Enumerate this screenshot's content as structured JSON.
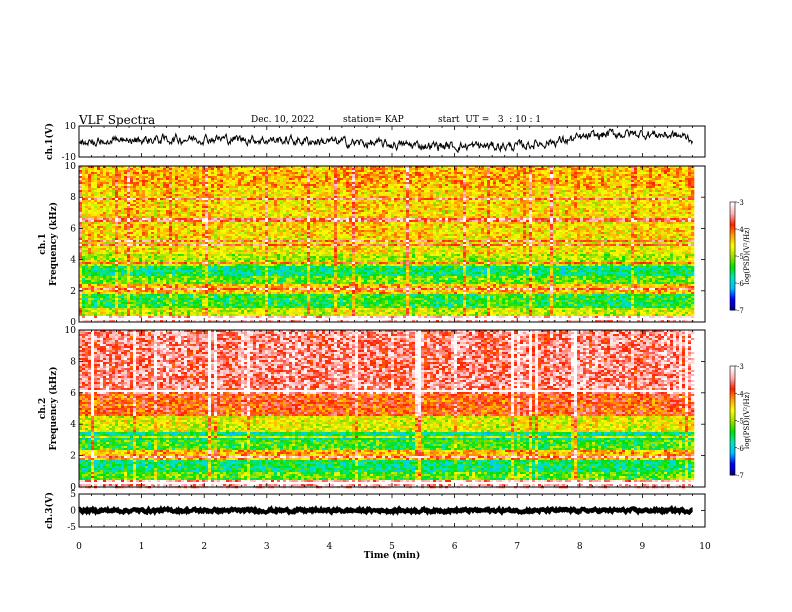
{
  "header": {
    "title": "VLF Spectra",
    "date": "Dec. 10, 2022",
    "station": "station= KAP",
    "start": "start  UT =   3  : 10 : 1"
  },
  "chart_data": [
    {
      "type": "line",
      "panel": "ch1-waveform",
      "ylabel": "ch.1(V)",
      "ylim": [
        -10,
        10
      ],
      "yticks": [
        "10",
        "-10"
      ],
      "xlim": [
        0,
        10
      ],
      "series": [
        {
          "x": [
            0,
            1,
            2,
            3,
            4,
            4.5,
            5,
            6,
            7,
            8,
            8.5,
            9,
            9.5,
            9.8
          ],
          "values": [
            0,
            1,
            2,
            1,
            0,
            -1,
            -2,
            -3,
            -3,
            2,
            5,
            5,
            4,
            2
          ],
          "noise": 4
        }
      ]
    },
    {
      "type": "heatmap",
      "panel": "ch1-spectrogram",
      "ylabel": "Frequency (kHz)",
      "channel_label": "ch.1",
      "ylim": [
        0,
        10
      ],
      "yticks": [
        "0",
        "2",
        "4",
        "6",
        "8",
        "10"
      ],
      "xlim": [
        0,
        9.8
      ],
      "bands": [
        {
          "from": 0,
          "to": 0.5,
          "level": -3.2
        },
        {
          "from": 0.5,
          "to": 1.0,
          "level": -4.8
        },
        {
          "from": 1.0,
          "to": 1.9,
          "level": -5.4
        },
        {
          "from": 1.9,
          "to": 2.5,
          "level": -4.4
        },
        {
          "from": 2.5,
          "to": 3.0,
          "level": -5.2
        },
        {
          "from": 3.0,
          "to": 3.7,
          "level": -5.6
        },
        {
          "from": 3.7,
          "to": 4.4,
          "level": -4.9
        },
        {
          "from": 4.4,
          "to": 5.5,
          "level": -4.6
        },
        {
          "from": 5.5,
          "to": 8.6,
          "level": -4.5
        },
        {
          "from": 8.6,
          "to": 10,
          "level": -4.3
        }
      ],
      "lines_khz": [
        0.3,
        2.2,
        3.8,
        5.0,
        5.3,
        6.6,
        8.0
      ],
      "colorbar": {
        "label": "log(PSD)(V²/Hz)",
        "range": [
          -7,
          -3
        ],
        "ticks": [
          "-3",
          "-4",
          "-5",
          "-6",
          "-7"
        ]
      }
    },
    {
      "type": "heatmap",
      "panel": "ch2-spectrogram",
      "ylabel": "Frequency (kHz)",
      "channel_label": "ch.2",
      "ylim": [
        0,
        10
      ],
      "yticks": [
        "0",
        "2",
        "4",
        "6",
        "8",
        "10"
      ],
      "xlim": [
        0,
        9.8
      ],
      "bands": [
        {
          "from": 0,
          "to": 0.5,
          "level": -3.3
        },
        {
          "from": 0.5,
          "to": 1.0,
          "level": -5.2
        },
        {
          "from": 1.0,
          "to": 1.8,
          "level": -5.6
        },
        {
          "from": 1.8,
          "to": 2.4,
          "level": -4.3
        },
        {
          "from": 2.4,
          "to": 3.0,
          "level": -5.3
        },
        {
          "from": 3.0,
          "to": 3.6,
          "level": -5.7
        },
        {
          "from": 3.6,
          "to": 4.6,
          "level": -4.7
        },
        {
          "from": 4.6,
          "to": 6.0,
          "level": -3.9
        },
        {
          "from": 6.0,
          "to": 10,
          "level": -3.5
        }
      ],
      "lines_khz": [
        0.3,
        2.0,
        3.3,
        6.2
      ],
      "colorbar": {
        "label": "log(PSD)(V²/Hz)",
        "range": [
          -7,
          -3
        ],
        "ticks": [
          "-3",
          "-4",
          "-5",
          "-6",
          "-7"
        ]
      }
    },
    {
      "type": "line",
      "panel": "ch3-waveform",
      "ylabel": "ch.3(V)",
      "ylim": [
        -5,
        5
      ],
      "yticks": [
        "5",
        "0",
        "-5"
      ],
      "xlim": [
        0,
        10
      ],
      "series": [
        {
          "x": [
            0,
            9.8
          ],
          "values": [
            0,
            0
          ],
          "noise": 0.6
        }
      ]
    }
  ],
  "x_axis": {
    "label": "Time  (min)",
    "ticks": [
      "0",
      "1",
      "2",
      "3",
      "4",
      "5",
      "6",
      "7",
      "8",
      "9",
      "10"
    ],
    "range": [
      0,
      10
    ]
  },
  "colors": {
    "colormap": [
      "#000080",
      "#0000ff",
      "#00bfff",
      "#00e5c0",
      "#00e000",
      "#a0e000",
      "#ffff00",
      "#ffa000",
      "#ff2000",
      "#ffb0b0",
      "#ffffff"
    ]
  }
}
